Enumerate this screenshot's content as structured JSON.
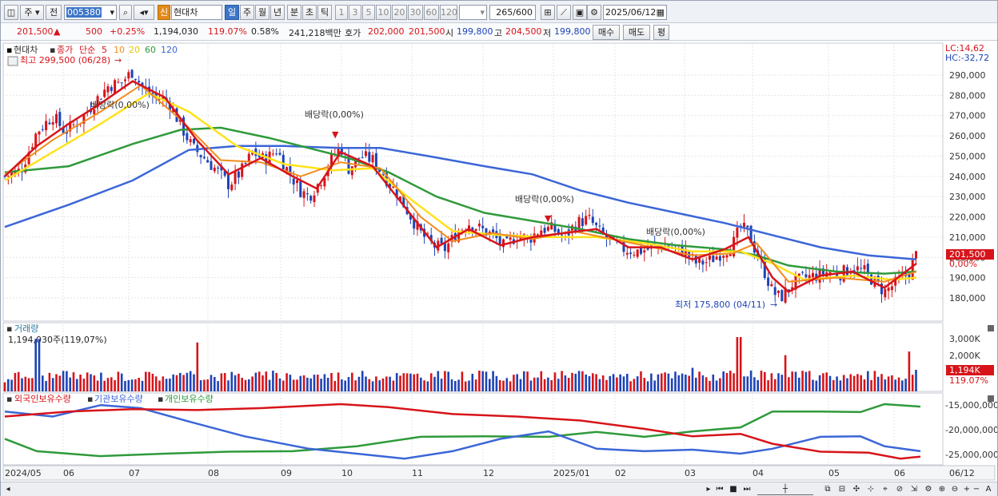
{
  "toolbar": {
    "mode_label": "주",
    "period_label": "전",
    "code": "005380",
    "stock_name": "현대차",
    "credit_badge": "신",
    "periods": [
      "일",
      "주",
      "월",
      "년",
      "분",
      "초",
      "틱"
    ],
    "minute_steps": [
      "1",
      "3",
      "5",
      "10",
      "20",
      "30",
      "60",
      "120"
    ],
    "count_value": "265",
    "count_total": "/600",
    "date_value": "2025/06/12"
  },
  "quote": {
    "price": "201,500",
    "arrow": "▲",
    "change": "500",
    "change_pct": "+0.25%",
    "volume": "1,194,030",
    "volume_ratio": "119.07%",
    "turnover": "0.58%",
    "amount": "241,218백만",
    "ask_label": "호가",
    "ask1": "202,000",
    "bid1": "201,500",
    "open_label": "시",
    "open": "199,800",
    "high_label": "고",
    "high": "204,500",
    "low_label": "저",
    "low": "199,800",
    "buy_btn": "매수",
    "sell_btn": "매도",
    "eval_btn": "평"
  },
  "legend": {
    "name": "현대차",
    "close": "종가",
    "ma_label": "단순",
    "ma5": "5",
    "ma10": "10",
    "ma20": "20",
    "ma60": "60",
    "ma120": "120"
  },
  "annotations": {
    "high": "최고 299,500 (06/28)",
    "low": "최저 175,800 (04/11)",
    "dividends": [
      "배당락(0,00%)",
      "배당락(0,00%)",
      "배당락(0,00%)",
      "배당락(0,00%)"
    ],
    "lc": "LC:14,62",
    "hc": "HC:-32,72",
    "price_tag": "201,500",
    "price_pct": "0,00%"
  },
  "volume_panel": {
    "title": "거래량",
    "value": "1,194,030주(119,07%)",
    "axis": [
      "3,000K",
      "2,000K"
    ],
    "tag": "1,194K",
    "tag_pct": "119.07%"
  },
  "holdings_panel": {
    "labels": [
      "외국인보유수량",
      "기관보유수량",
      "개인보유수량"
    ],
    "axis": [
      "-15,000,000",
      "-20,000,000",
      "-25,000,000"
    ]
  },
  "x_axis": {
    "labels": [
      "2024/05",
      "06",
      "07",
      "08",
      "09",
      "10",
      "11",
      "12",
      "2025/01",
      "02",
      "03",
      "04",
      "05",
      "06",
      "06/12"
    ]
  },
  "colors": {
    "up": "#d7141a",
    "down": "#1d44b6",
    "ma5": "#d7141a",
    "ma10": "#f28c1e",
    "ma20": "#ffe21a",
    "ma60": "#2f9a3b",
    "ma120": "#3b66d8",
    "foreign": "#d7141a",
    "inst": "#3b66d8",
    "indiv": "#2f9a3b"
  },
  "chart_data": {
    "type": "candlestick",
    "price_ticks": [
      290000,
      280000,
      270000,
      260000,
      250000,
      240000,
      230000,
      220000,
      210000,
      200000,
      190000,
      180000
    ],
    "close_series": [
      [
        0,
        240000
      ],
      [
        20,
        243000
      ],
      [
        40,
        262000
      ],
      [
        60,
        270000
      ],
      [
        75,
        262000
      ],
      [
        95,
        268000
      ],
      [
        115,
        278000
      ],
      [
        130,
        285000
      ],
      [
        145,
        286000
      ],
      [
        160,
        292000
      ],
      [
        175,
        282000
      ],
      [
        190,
        279000
      ],
      [
        205,
        277000
      ],
      [
        220,
        265000
      ],
      [
        235,
        254000
      ],
      [
        250,
        249000
      ],
      [
        265,
        243000
      ],
      [
        280,
        236000
      ],
      [
        295,
        242000
      ],
      [
        310,
        252000
      ],
      [
        325,
        248000
      ],
      [
        340,
        253000
      ],
      [
        355,
        242000
      ],
      [
        370,
        233000
      ],
      [
        380,
        230000
      ],
      [
        395,
        238000
      ],
      [
        410,
        250000
      ],
      [
        420,
        255000
      ],
      [
        430,
        244000
      ],
      [
        445,
        250000
      ],
      [
        460,
        248000
      ],
      [
        475,
        240000
      ],
      [
        490,
        232000
      ],
      [
        505,
        222000
      ],
      [
        520,
        212000
      ],
      [
        535,
        206000
      ],
      [
        550,
        204000
      ],
      [
        565,
        212000
      ],
      [
        580,
        217000
      ],
      [
        595,
        214000
      ],
      [
        610,
        211000
      ],
      [
        625,
        205000
      ],
      [
        640,
        211000
      ],
      [
        655,
        209000
      ],
      [
        670,
        214000
      ],
      [
        685,
        214000
      ],
      [
        700,
        210000
      ],
      [
        715,
        217000
      ],
      [
        730,
        219000
      ],
      [
        745,
        212000
      ],
      [
        760,
        207000
      ],
      [
        775,
        204000
      ],
      [
        790,
        203000
      ],
      [
        805,
        204000
      ],
      [
        820,
        206000
      ],
      [
        835,
        205000
      ],
      [
        850,
        203000
      ],
      [
        865,
        197000
      ],
      [
        880,
        198000
      ],
      [
        895,
        202000
      ],
      [
        910,
        206000
      ],
      [
        920,
        215000
      ],
      [
        930,
        212000
      ],
      [
        940,
        202000
      ],
      [
        950,
        193000
      ],
      [
        960,
        183000
      ],
      [
        970,
        180000
      ],
      [
        985,
        187000
      ],
      [
        1000,
        190000
      ],
      [
        1015,
        191000
      ],
      [
        1030,
        193000
      ],
      [
        1045,
        192000
      ],
      [
        1060,
        195000
      ],
      [
        1075,
        193000
      ],
      [
        1090,
        187000
      ],
      [
        1100,
        183000
      ],
      [
        1110,
        186000
      ],
      [
        1120,
        189000
      ],
      [
        1130,
        192000
      ],
      [
        1140,
        201500
      ]
    ],
    "ma5": [
      [
        0,
        240000
      ],
      [
        40,
        255000
      ],
      [
        80,
        266000
      ],
      [
        120,
        276000
      ],
      [
        160,
        287000
      ],
      [
        200,
        279000
      ],
      [
        240,
        258000
      ],
      [
        280,
        241000
      ],
      [
        320,
        249000
      ],
      [
        360,
        240000
      ],
      [
        390,
        234000
      ],
      [
        420,
        252000
      ],
      [
        460,
        245000
      ],
      [
        500,
        225000
      ],
      [
        540,
        205000
      ],
      [
        580,
        214000
      ],
      [
        620,
        206000
      ],
      [
        660,
        210000
      ],
      [
        700,
        212000
      ],
      [
        740,
        214000
      ],
      [
        780,
        205000
      ],
      [
        820,
        205000
      ],
      [
        860,
        199000
      ],
      [
        900,
        204000
      ],
      [
        930,
        210000
      ],
      [
        960,
        190000
      ],
      [
        980,
        183000
      ],
      [
        1020,
        191000
      ],
      [
        1060,
        193000
      ],
      [
        1100,
        185000
      ],
      [
        1140,
        197000
      ]
    ],
    "ma10": [
      [
        0,
        241000
      ],
      [
        60,
        258000
      ],
      [
        120,
        272000
      ],
      [
        170,
        285000
      ],
      [
        220,
        268000
      ],
      [
        270,
        248000
      ],
      [
        320,
        247000
      ],
      [
        370,
        240000
      ],
      [
        420,
        247000
      ],
      [
        470,
        244000
      ],
      [
        520,
        220000
      ],
      [
        560,
        208000
      ],
      [
        610,
        212000
      ],
      [
        660,
        209000
      ],
      [
        710,
        213000
      ],
      [
        760,
        209000
      ],
      [
        810,
        205000
      ],
      [
        860,
        201000
      ],
      [
        910,
        202000
      ],
      [
        940,
        207000
      ],
      [
        980,
        188000
      ],
      [
        1040,
        190000
      ],
      [
        1100,
        188000
      ],
      [
        1140,
        193000
      ]
    ],
    "ma20": [
      [
        0,
        238000
      ],
      [
        60,
        252000
      ],
      [
        120,
        266000
      ],
      [
        180,
        281000
      ],
      [
        230,
        272000
      ],
      [
        290,
        255000
      ],
      [
        350,
        246000
      ],
      [
        410,
        243000
      ],
      [
        460,
        244000
      ],
      [
        510,
        228000
      ],
      [
        560,
        213000
      ],
      [
        620,
        211000
      ],
      [
        680,
        210000
      ],
      [
        740,
        210000
      ],
      [
        800,
        207000
      ],
      [
        860,
        203000
      ],
      [
        920,
        203000
      ],
      [
        960,
        197000
      ],
      [
        1000,
        189000
      ],
      [
        1060,
        191000
      ],
      [
        1110,
        189000
      ],
      [
        1140,
        190000
      ]
    ],
    "ma60": [
      [
        0,
        242000
      ],
      [
        80,
        245000
      ],
      [
        160,
        256000
      ],
      [
        220,
        263000
      ],
      [
        270,
        264000
      ],
      [
        330,
        259000
      ],
      [
        380,
        254000
      ],
      [
        430,
        249000
      ],
      [
        480,
        242000
      ],
      [
        540,
        230000
      ],
      [
        600,
        222000
      ],
      [
        660,
        218000
      ],
      [
        720,
        214000
      ],
      [
        780,
        209000
      ],
      [
        840,
        206000
      ],
      [
        900,
        204000
      ],
      [
        940,
        201000
      ],
      [
        980,
        196000
      ],
      [
        1040,
        193000
      ],
      [
        1100,
        192000
      ],
      [
        1140,
        193000
      ]
    ],
    "ma120": [
      [
        0,
        215000
      ],
      [
        80,
        226000
      ],
      [
        160,
        238000
      ],
      [
        230,
        253000
      ],
      [
        290,
        255000
      ],
      [
        350,
        255000
      ],
      [
        420,
        254000
      ],
      [
        470,
        254000
      ],
      [
        530,
        250000
      ],
      [
        600,
        245000
      ],
      [
        660,
        241000
      ],
      [
        720,
        233000
      ],
      [
        780,
        227000
      ],
      [
        840,
        222000
      ],
      [
        900,
        217000
      ],
      [
        960,
        211000
      ],
      [
        1020,
        205000
      ],
      [
        1080,
        201000
      ],
      [
        1140,
        199000
      ]
    ],
    "volume_series": [
      [
        0,
        0.5
      ],
      [
        40,
        2.9
      ],
      [
        240,
        2.7
      ],
      [
        860,
        1.3
      ],
      [
        918,
        3.0
      ],
      [
        975,
        2.0
      ],
      [
        1130,
        2.2
      ],
      [
        1140,
        1.19
      ]
    ],
    "holdings": {
      "foreign": [
        [
          0,
          -17.5
        ],
        [
          80,
          -16.5
        ],
        [
          160,
          -16.0
        ],
        [
          240,
          -16.2
        ],
        [
          320,
          -15.8
        ],
        [
          420,
          -15.0
        ],
        [
          480,
          -15.6
        ],
        [
          560,
          -17.0
        ],
        [
          640,
          -17.5
        ],
        [
          720,
          -18.3
        ],
        [
          800,
          -20.0
        ],
        [
          860,
          -21.5
        ],
        [
          920,
          -21.0
        ],
        [
          960,
          -23.0
        ],
        [
          1020,
          -24.6
        ],
        [
          1080,
          -24.8
        ],
        [
          1120,
          -26.0
        ],
        [
          1145,
          -25.6
        ]
      ],
      "inst": [
        [
          0,
          -16.5
        ],
        [
          60,
          -17.5
        ],
        [
          120,
          -15.2
        ],
        [
          170,
          -15.8
        ],
        [
          230,
          -18.5
        ],
        [
          300,
          -21.5
        ],
        [
          380,
          -24.0
        ],
        [
          440,
          -25.0
        ],
        [
          500,
          -26.0
        ],
        [
          560,
          -24.5
        ],
        [
          620,
          -22.0
        ],
        [
          680,
          -20.5
        ],
        [
          740,
          -24.0
        ],
        [
          800,
          -24.5
        ],
        [
          860,
          -24.2
        ],
        [
          920,
          -25.0
        ],
        [
          960,
          -24.0
        ],
        [
          1020,
          -21.6
        ],
        [
          1070,
          -21.5
        ],
        [
          1100,
          -23.5
        ],
        [
          1145,
          -24.5
        ]
      ],
      "indiv": [
        [
          0,
          -22.0
        ],
        [
          40,
          -24.5
        ],
        [
          120,
          -25.5
        ],
        [
          200,
          -25.0
        ],
        [
          280,
          -24.6
        ],
        [
          360,
          -24.5
        ],
        [
          440,
          -23.5
        ],
        [
          520,
          -21.6
        ],
        [
          600,
          -21.5
        ],
        [
          680,
          -21.6
        ],
        [
          740,
          -20.6
        ],
        [
          800,
          -21.6
        ],
        [
          860,
          -20.5
        ],
        [
          920,
          -19.7
        ],
        [
          960,
          -16.5
        ],
        [
          1020,
          -16.5
        ],
        [
          1070,
          -16.6
        ],
        [
          1100,
          -15.0
        ],
        [
          1145,
          -15.5
        ]
      ]
    }
  }
}
